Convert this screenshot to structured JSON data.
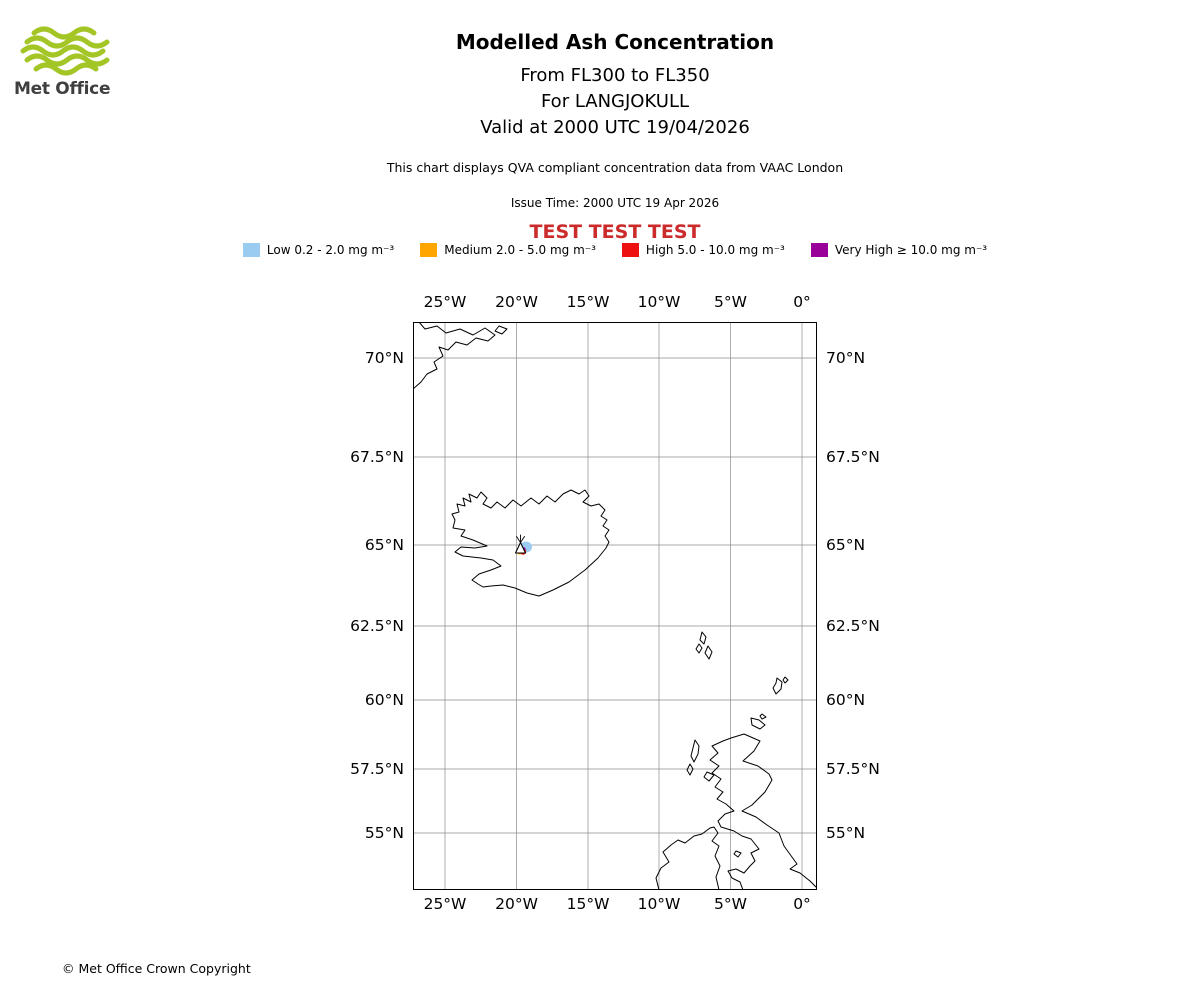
{
  "logo": {
    "brand": "Met Office",
    "wave_color": "#a3c626",
    "text_color": "#3f3f3f"
  },
  "header": {
    "title": "Modelled Ash Concentration",
    "subtitle1": "From FL300 to FL350",
    "subtitle2": "For LANGJOKULL",
    "subtitle3": "Valid at 2000 UTC 19/04/2026",
    "compliance_note": "This chart displays QVA compliant concentration data from VAAC London",
    "issue_time": "Issue Time: 2000 UTC 19 Apr 2026",
    "test_banner": "TEST TEST TEST",
    "test_banner_color": "#cc2b2b"
  },
  "legend": {
    "items": [
      {
        "label": "Low 0.2 - 2.0 mg m⁻³",
        "color": "#99ccf0"
      },
      {
        "label": "Medium 2.0 - 5.0 mg m⁻³",
        "color": "#ffa500"
      },
      {
        "label": "High 5.0 - 10.0 mg m⁻³",
        "color": "#ee1111"
      },
      {
        "label": "Very High  ≥  10.0 mg m⁻³",
        "color": "#990099"
      }
    ]
  },
  "map": {
    "lon_ticks": [
      "25°W",
      "20°W",
      "15°W",
      "10°W",
      "5°W",
      "0°"
    ],
    "lat_ticks": [
      "70°N",
      "67.5°N",
      "65°N",
      "62.5°N",
      "60°N",
      "57.5°N",
      "55°N"
    ]
  },
  "footer": {
    "copyright": "© Met Office Crown Copyright"
  }
}
